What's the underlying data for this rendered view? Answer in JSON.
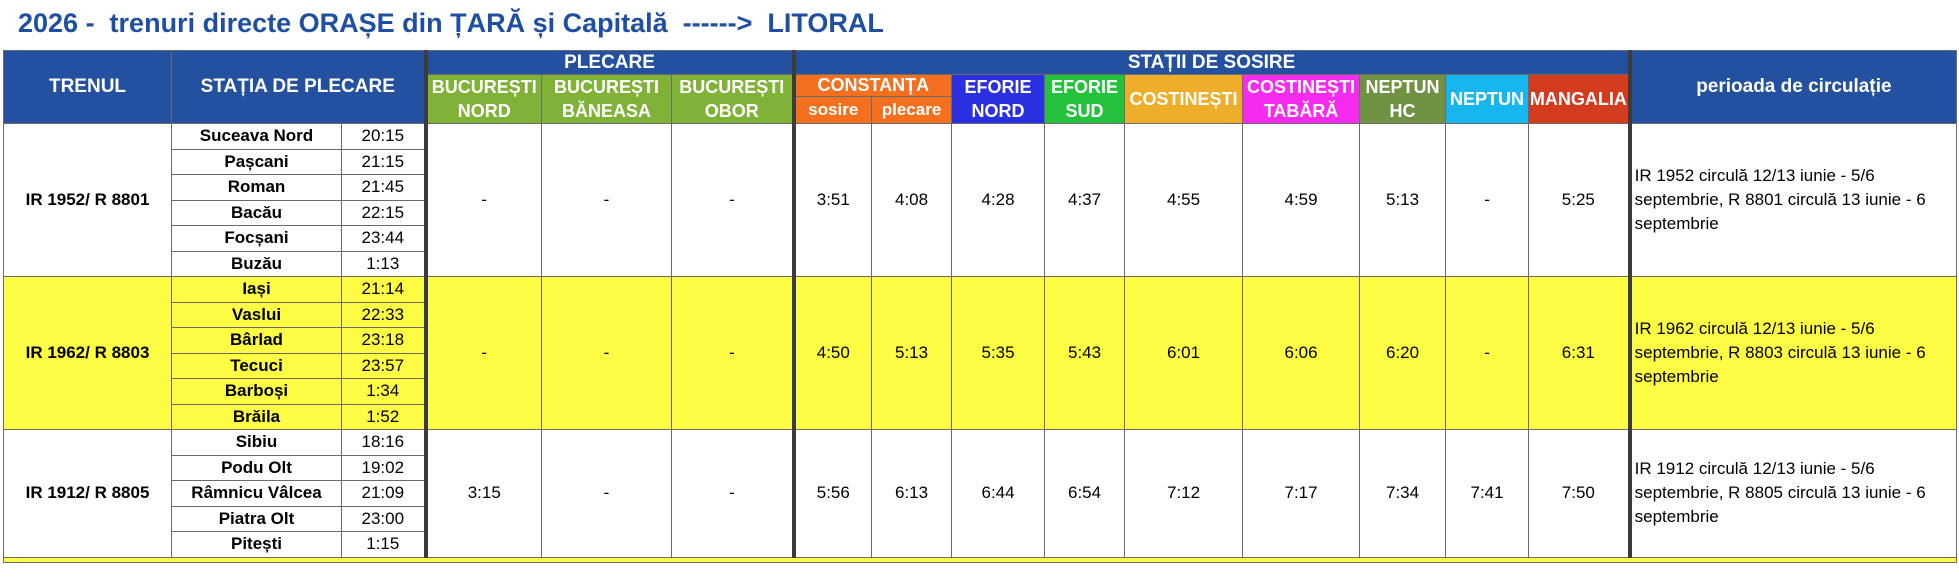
{
  "title": "2026 -  trenuri directe ORAȘE din ȚARĂ și Capitală  ------>  LITORAL",
  "headers": {
    "train": "TRENUL",
    "departure_station": "STAȚIA DE PLECARE",
    "plecare": "PLECARE",
    "arrivals": "STAȚII DE SOSIRE",
    "period": "perioada de circulație",
    "buc_nord_1": "BUCUREȘTI",
    "buc_nord_2": "NORD",
    "buc_baneasa_1": "BUCUREȘTI",
    "buc_baneasa_2": "BĂNEASA",
    "buc_obor_1": "BUCUREȘTI",
    "buc_obor_2": "OBOR",
    "constanta": "CONSTANȚA",
    "sosire": "sosire",
    "plecare_sub": "plecare",
    "eforie_nord_1": "EFORIE",
    "eforie_nord_2": "NORD",
    "eforie_sud_1": "EFORIE",
    "eforie_sud_2": "SUD",
    "costinesti": "COSTINEȘTI",
    "costinesti_tabara_1": "COSTINEȘTI",
    "costinesti_tabara_2": "TABĂRĂ",
    "neptun_hc_1": "NEPTUN",
    "neptun_hc_2": "HC",
    "neptun": "NEPTUN",
    "mangalia": "MANGALIA"
  },
  "colors": {
    "title": "#1f4fa3",
    "header_blue": "#2450a0",
    "bucuresti_green": "#7fb236",
    "constanta_orange": "#f46f1e",
    "eforie_nord_blue": "#2a2fe0",
    "eforie_sud_green": "#24c13c",
    "costinesti_amber": "#eeae29",
    "costinesti_tabara_magenta": "#f52cf0",
    "neptun_hc_olive": "#6f9243",
    "neptun_cyan": "#18b6ee",
    "mangalia_red": "#d43c20",
    "highlight_yellow": "#fdfd43"
  },
  "trains": [
    {
      "name": "IR 1952/ R 8801",
      "stops": [
        {
          "station": "Suceava Nord",
          "time": "20:15"
        },
        {
          "station": "Pașcani",
          "time": "21:15"
        },
        {
          "station": "Roman",
          "time": "21:45"
        },
        {
          "station": "Bacău",
          "time": "22:15"
        },
        {
          "station": "Focșani",
          "time": "23:44"
        },
        {
          "station": "Buzău",
          "time": "1:13"
        }
      ],
      "buc_nord": "-",
      "buc_baneasa": "-",
      "buc_obor": "-",
      "constanta_sosire": "3:51",
      "constanta_plecare": "4:08",
      "eforie_nord": "4:28",
      "eforie_sud": "4:37",
      "costinesti": "4:55",
      "costinesti_tabara": "4:59",
      "neptun_hc": "5:13",
      "neptun": "-",
      "mangalia": "5:25",
      "period": "IR 1952 circulă 12/13 iunie - 5/6 septembrie, R 8801 circulă 13 iunie - 6 septembrie"
    },
    {
      "name": "IR 1962/ R 8803",
      "stops": [
        {
          "station": "Iași",
          "time": "21:14"
        },
        {
          "station": "Vaslui",
          "time": "22:33"
        },
        {
          "station": "Bârlad",
          "time": "23:18"
        },
        {
          "station": "Tecuci",
          "time": "23:57"
        },
        {
          "station": "Barboși",
          "time": "1:34"
        },
        {
          "station": "Brăila",
          "time": "1:52"
        }
      ],
      "buc_nord": "-",
      "buc_baneasa": "-",
      "buc_obor": "-",
      "constanta_sosire": "4:50",
      "constanta_plecare": "5:13",
      "eforie_nord": "5:35",
      "eforie_sud": "5:43",
      "costinesti": "6:01",
      "costinesti_tabara": "6:06",
      "neptun_hc": "6:20",
      "neptun": "-",
      "mangalia": "6:31",
      "period": "IR 1962 circulă 12/13 iunie - 5/6 septembrie, R 8803 circulă 13 iunie - 6 septembrie"
    },
    {
      "name": "IR 1912/ R 8805",
      "stops": [
        {
          "station": "Sibiu",
          "time": "18:16"
        },
        {
          "station": "Podu Olt",
          "time": "19:02"
        },
        {
          "station": "Râmnicu Vâlcea",
          "time": "21:09"
        },
        {
          "station": "Piatra Olt",
          "time": "23:00"
        },
        {
          "station": "Pitești",
          "time": "1:15"
        }
      ],
      "buc_nord": "3:15",
      "buc_baneasa": "-",
      "buc_obor": "-",
      "constanta_sosire": "5:56",
      "constanta_plecare": "6:13",
      "eforie_nord": "6:44",
      "eforie_sud": "6:54",
      "costinesti": "7:12",
      "costinesti_tabara": "7:17",
      "neptun_hc": "7:34",
      "neptun": "7:41",
      "mangalia": "7:50",
      "period": "IR 1912 circulă 12/13 iunie - 5/6 septembrie, R 8805 circulă 13 iunie - 6 septembrie"
    }
  ]
}
